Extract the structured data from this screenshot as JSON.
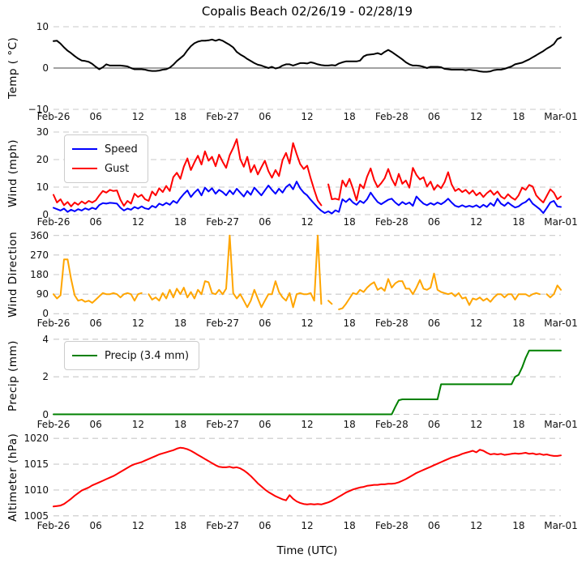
{
  "figure": {
    "title": "Copalis Beach 02/26/19 - 02/28/19",
    "xlabel": "Time (UTC)",
    "background": "#ffffff",
    "gridline_color": "#c9c9c9",
    "xtick_hours": [
      0,
      6,
      12,
      18,
      24,
      30,
      36,
      42,
      48,
      54,
      60,
      66,
      72
    ],
    "xtick_labels": [
      "Feb-26",
      "06",
      "12",
      "18",
      "Feb-27",
      "06",
      "12",
      "18",
      "Feb-28",
      "06",
      "12",
      "18",
      "Mar-01"
    ]
  },
  "legends": {
    "wind": {
      "entries": [
        "Speed",
        "Gust"
      ]
    },
    "precip": {
      "entries": [
        "Precip (3.4 mm)"
      ]
    }
  },
  "chart_data": [
    {
      "type": "line",
      "ylabel": "Temp ( °C)",
      "ylim": [
        -10,
        10
      ],
      "yticks": [
        -10,
        0,
        10
      ],
      "zero_line": true,
      "x_step_hours": 0.5,
      "x_range_hours": [
        0,
        72
      ],
      "grid": true,
      "series": [
        {
          "name": "Temp",
          "color": "#000000",
          "values": [
            6.5,
            6.6,
            5.9,
            5.0,
            4.2,
            3.6,
            2.9,
            2.3,
            1.8,
            1.7,
            1.5,
            1.0,
            0.3,
            -0.3,
            0.2,
            0.9,
            0.6,
            0.6,
            0.6,
            0.6,
            0.5,
            0.4,
            0.0,
            -0.3,
            -0.3,
            -0.3,
            -0.4,
            -0.6,
            -0.7,
            -0.7,
            -0.6,
            -0.4,
            -0.3,
            0.1,
            0.8,
            1.7,
            2.4,
            3.1,
            4.3,
            5.3,
            6.0,
            6.4,
            6.6,
            6.6,
            6.7,
            6.9,
            6.6,
            6.9,
            6.6,
            6.1,
            5.6,
            5.0,
            3.9,
            3.3,
            2.8,
            2.2,
            1.7,
            1.2,
            0.8,
            0.6,
            0.3,
            0.0,
            0.3,
            -0.1,
            0.1,
            0.6,
            0.9,
            0.9,
            0.6,
            0.9,
            1.2,
            1.2,
            1.1,
            1.4,
            1.2,
            0.9,
            0.7,
            0.6,
            0.6,
            0.7,
            0.6,
            1.1,
            1.4,
            1.6,
            1.6,
            1.6,
            1.6,
            1.8,
            2.8,
            3.2,
            3.3,
            3.4,
            3.6,
            3.3,
            3.9,
            4.4,
            3.9,
            3.3,
            2.7,
            2.1,
            1.4,
            0.9,
            0.6,
            0.6,
            0.5,
            0.3,
            0.0,
            0.3,
            0.3,
            0.3,
            0.2,
            -0.2,
            -0.3,
            -0.4,
            -0.4,
            -0.4,
            -0.4,
            -0.5,
            -0.4,
            -0.5,
            -0.6,
            -0.8,
            -0.9,
            -0.9,
            -0.8,
            -0.5,
            -0.4,
            -0.4,
            -0.2,
            0.1,
            0.4,
            0.9,
            1.1,
            1.3,
            1.7,
            2.1,
            2.6,
            3.1,
            3.6,
            4.1,
            4.7,
            5.2,
            5.8,
            7.0,
            7.4
          ]
        }
      ]
    },
    {
      "type": "line",
      "ylabel": "Wind (mph)",
      "ylim": [
        0,
        30
      ],
      "yticks": [
        0,
        10,
        20,
        30
      ],
      "x_step_hours": 0.5,
      "x_range_hours": [
        0,
        72
      ],
      "grid": true,
      "legend_position": "upper left",
      "series": [
        {
          "name": "Speed",
          "color": "#0000ff",
          "values": [
            2.5,
            2.0,
            1.5,
            2.2,
            1.0,
            1.8,
            1.2,
            2.0,
            1.5,
            2.3,
            1.8,
            2.5,
            2.0,
            3.5,
            4.2,
            4.0,
            4.3,
            4.2,
            4.0,
            2.5,
            1.5,
            2.2,
            1.8,
            2.8,
            2.2,
            3.0,
            2.3,
            2.0,
            3.2,
            2.6,
            4.0,
            3.4,
            4.3,
            3.6,
            5.0,
            4.2,
            6.0,
            7.5,
            8.8,
            6.4,
            8.0,
            9.2,
            7.0,
            9.8,
            8.4,
            9.6,
            7.6,
            9.0,
            8.2,
            7.0,
            8.8,
            7.4,
            9.4,
            8.0,
            6.6,
            8.6,
            7.2,
            9.8,
            8.4,
            7.0,
            8.8,
            10.6,
            9.0,
            7.6,
            9.4,
            8.0,
            10.0,
            11.0,
            9.2,
            12.0,
            9.6,
            8.0,
            7.0,
            5.4,
            4.0,
            2.6,
            1.4,
            0.6,
            1.2,
            0.4,
            1.6,
            1.0,
            5.6,
            4.6,
            5.8,
            4.4,
            3.6,
            5.0,
            4.2,
            5.6,
            8.0,
            6.2,
            4.6,
            3.8,
            4.6,
            5.4,
            5.8,
            4.4,
            3.4,
            4.6,
            3.8,
            4.4,
            3.2,
            6.6,
            5.2,
            4.0,
            3.4,
            4.2,
            3.6,
            4.4,
            3.8,
            4.6,
            5.8,
            4.4,
            3.2,
            2.8,
            3.4,
            2.8,
            3.2,
            2.8,
            3.4,
            2.6,
            3.6,
            2.8,
            4.2,
            3.2,
            5.8,
            4.0,
            3.2,
            4.4,
            3.4,
            2.6,
            3.0,
            4.0,
            4.6,
            5.8,
            4.0,
            3.0,
            2.0,
            0.6,
            2.4,
            4.4,
            5.0,
            3.0,
            2.8
          ]
        },
        {
          "name": "Gust",
          "color": "#ff0000",
          "values": [
            7.2,
            4.4,
            5.6,
            3.4,
            4.6,
            3.0,
            4.4,
            3.6,
            4.8,
            4.0,
            5.0,
            4.4,
            5.2,
            7.0,
            8.6,
            8.0,
            9.0,
            8.6,
            8.8,
            5.4,
            3.2,
            5.0,
            4.0,
            7.6,
            6.4,
            7.2,
            5.6,
            5.0,
            8.4,
            7.0,
            9.6,
            8.2,
            10.4,
            8.6,
            13.6,
            15.2,
            13.0,
            17.4,
            20.4,
            16.2,
            19.0,
            21.4,
            18.2,
            23.0,
            19.6,
            21.0,
            17.6,
            21.8,
            19.2,
            17.0,
            21.6,
            24.2,
            27.4,
            20.2,
            17.4,
            21.0,
            15.4,
            18.0,
            14.6,
            17.2,
            19.6,
            15.8,
            13.4,
            16.2,
            14.0,
            19.8,
            22.4,
            18.6,
            26.0,
            22.0,
            18.4,
            16.6,
            17.8,
            13.2,
            9.0,
            5.2,
            3.4,
            null,
            11.0,
            5.6,
            5.8,
            5.4,
            12.4,
            10.2,
            13.0,
            9.4,
            5.2,
            11.0,
            9.6,
            13.8,
            16.8,
            12.6,
            10.0,
            11.4,
            13.2,
            16.6,
            13.0,
            10.6,
            14.8,
            11.2,
            12.4,
            9.8,
            17.0,
            14.4,
            12.8,
            13.6,
            10.2,
            12.0,
            9.0,
            10.8,
            9.6,
            11.8,
            15.4,
            11.0,
            8.6,
            9.4,
            8.2,
            9.0,
            7.6,
            8.8,
            7.0,
            8.0,
            6.4,
            7.8,
            8.8,
            7.2,
            8.4,
            6.6,
            5.8,
            7.4,
            6.2,
            5.4,
            7.0,
            9.8,
            9.0,
            10.8,
            10.2,
            7.0,
            5.6,
            4.4,
            6.8,
            9.2,
            8.0,
            5.6,
            6.6
          ]
        }
      ]
    },
    {
      "type": "line",
      "ylabel": "Wind Direction",
      "ylim": [
        -10,
        370
      ],
      "yticks": [
        0,
        90,
        180,
        270,
        360
      ],
      "x_step_hours": 0.5,
      "x_range_hours": [
        0,
        72
      ],
      "grid": true,
      "series": [
        {
          "name": "Direction",
          "color": "#ffa500",
          "values": [
            90,
            70,
            85,
            250,
            250,
            160,
            85,
            60,
            65,
            55,
            60,
            50,
            65,
            80,
            95,
            90,
            90,
            95,
            90,
            75,
            90,
            95,
            90,
            60,
            90,
            95,
            null,
            90,
            65,
            75,
            60,
            95,
            70,
            110,
            75,
            115,
            90,
            120,
            75,
            100,
            70,
            110,
            90,
            150,
            145,
            95,
            90,
            110,
            90,
            115,
            360,
            95,
            70,
            90,
            60,
            30,
            60,
            110,
            70,
            30,
            60,
            90,
            90,
            150,
            100,
            75,
            60,
            95,
            30,
            90,
            95,
            90,
            90,
            95,
            60,
            360,
            45,
            null,
            60,
            45,
            null,
            20,
            25,
            45,
            70,
            95,
            90,
            110,
            100,
            120,
            135,
            145,
            110,
            120,
            105,
            160,
            120,
            140,
            150,
            150,
            115,
            115,
            90,
            120,
            155,
            115,
            110,
            120,
            185,
            110,
            100,
            95,
            90,
            95,
            80,
            95,
            70,
            75,
            40,
            70,
            65,
            75,
            60,
            70,
            55,
            75,
            90,
            90,
            75,
            90,
            90,
            65,
            90,
            90,
            90,
            80,
            90,
            95,
            90,
            null,
            90,
            75,
            90,
            130,
            110
          ]
        }
      ]
    },
    {
      "type": "line",
      "ylabel": "Precip (mm)",
      "ylim": [
        -0.15,
        4.25
      ],
      "yticks": [
        0,
        2,
        4
      ],
      "x_step_hours": 0.5,
      "x_range_hours": [
        0,
        72
      ],
      "grid": true,
      "legend_position": "upper left",
      "series": [
        {
          "name": "Precip (3.4 mm)",
          "color": "#008000",
          "values": [
            0,
            0,
            0,
            0,
            0,
            0,
            0,
            0,
            0,
            0,
            0,
            0,
            0,
            0,
            0,
            0,
            0,
            0,
            0,
            0,
            0,
            0,
            0,
            0,
            0,
            0,
            0,
            0,
            0,
            0,
            0,
            0,
            0,
            0,
            0,
            0,
            0,
            0,
            0,
            0,
            0,
            0,
            0,
            0,
            0,
            0,
            0,
            0,
            0,
            0,
            0,
            0,
            0,
            0,
            0,
            0,
            0,
            0,
            0,
            0,
            0,
            0,
            0,
            0,
            0,
            0,
            0,
            0,
            0,
            0,
            0,
            0,
            0,
            0,
            0,
            0,
            0,
            0,
            0,
            0,
            0,
            0,
            0,
            0,
            0,
            0,
            0,
            0,
            0,
            0,
            0,
            0,
            0,
            0,
            0,
            0,
            0,
            0.4,
            0.75,
            0.8,
            0.8,
            0.8,
            0.8,
            0.8,
            0.8,
            0.8,
            0.8,
            0.8,
            0.8,
            0.8,
            1.6,
            1.6,
            1.6,
            1.6,
            1.6,
            1.6,
            1.6,
            1.6,
            1.6,
            1.6,
            1.6,
            1.6,
            1.6,
            1.6,
            1.6,
            1.6,
            1.6,
            1.6,
            1.6,
            1.6,
            1.6,
            2.0,
            2.1,
            2.5,
            3.0,
            3.4,
            3.4,
            3.4,
            3.4,
            3.4,
            3.4,
            3.4,
            3.4,
            3.4,
            3.4
          ]
        }
      ]
    },
    {
      "type": "line",
      "ylabel": "Altimeter (hPa)",
      "ylim": [
        1004.5,
        1020.5
      ],
      "yticks": [
        1005,
        1010,
        1015,
        1020
      ],
      "x_step_hours": 0.5,
      "x_range_hours": [
        0,
        72
      ],
      "grid": true,
      "series": [
        {
          "name": "Altimeter",
          "color": "#ff0000",
          "values": [
            1006.8,
            1006.9,
            1007.0,
            1007.3,
            1007.8,
            1008.3,
            1008.9,
            1009.4,
            1009.9,
            1010.2,
            1010.5,
            1010.9,
            1011.2,
            1011.5,
            1011.8,
            1012.1,
            1012.4,
            1012.7,
            1013.1,
            1013.5,
            1013.9,
            1014.3,
            1014.7,
            1015.0,
            1015.2,
            1015.4,
            1015.7,
            1016.0,
            1016.3,
            1016.6,
            1016.9,
            1017.1,
            1017.3,
            1017.5,
            1017.7,
            1018.0,
            1018.2,
            1018.1,
            1017.9,
            1017.6,
            1017.2,
            1016.8,
            1016.4,
            1016.0,
            1015.6,
            1015.2,
            1014.8,
            1014.5,
            1014.4,
            1014.4,
            1014.5,
            1014.3,
            1014.4,
            1014.2,
            1013.8,
            1013.3,
            1012.7,
            1012.0,
            1011.3,
            1010.7,
            1010.1,
            1009.6,
            1009.2,
            1008.8,
            1008.5,
            1008.2,
            1008.0,
            1009.0,
            1008.3,
            1007.8,
            1007.5,
            1007.3,
            1007.2,
            1007.3,
            1007.2,
            1007.3,
            1007.2,
            1007.4,
            1007.6,
            1007.9,
            1008.3,
            1008.7,
            1009.1,
            1009.5,
            1009.8,
            1010.1,
            1010.3,
            1010.5,
            1010.6,
            1010.8,
            1010.9,
            1011.0,
            1011.0,
            1011.1,
            1011.1,
            1011.2,
            1011.2,
            1011.3,
            1011.5,
            1011.8,
            1012.1,
            1012.5,
            1012.9,
            1013.3,
            1013.6,
            1013.9,
            1014.2,
            1014.5,
            1014.8,
            1015.1,
            1015.4,
            1015.7,
            1016.0,
            1016.3,
            1016.5,
            1016.7,
            1017.0,
            1017.2,
            1017.4,
            1017.6,
            1017.3,
            1017.8,
            1017.6,
            1017.2,
            1016.9,
            1017.0,
            1016.9,
            1017.0,
            1016.8,
            1016.9,
            1017.0,
            1017.1,
            1017.0,
            1017.1,
            1017.2,
            1017.0,
            1017.1,
            1016.9,
            1017.0,
            1016.8,
            1016.9,
            1016.7,
            1016.6,
            1016.6,
            1016.7
          ]
        }
      ]
    }
  ]
}
